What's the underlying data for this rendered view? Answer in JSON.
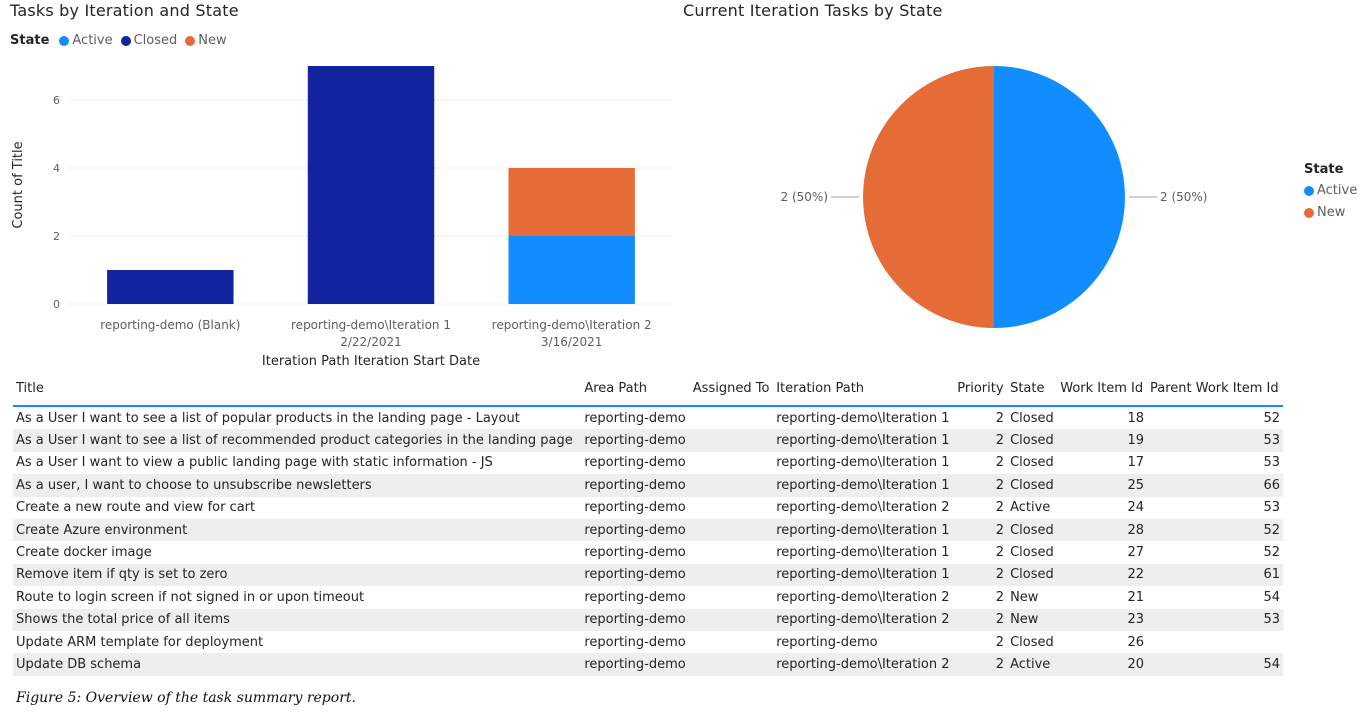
{
  "charts": {
    "bar_title": "Tasks by Iteration and State",
    "pie_title": "Current Iteration Tasks by State",
    "legend_label": "State"
  },
  "chart_data": [
    {
      "type": "bar",
      "stacked": true,
      "title": "Tasks by Iteration and State",
      "xlabel": "Iteration Path Iteration Start Date",
      "ylabel": "Count of Title",
      "ylim": [
        0,
        7
      ],
      "yticks": [
        0,
        2,
        4,
        6
      ],
      "categories": [
        [
          "reporting-demo (Blank)"
        ],
        [
          "reporting-demo\\Iteration 1",
          "2/22/2021"
        ],
        [
          "reporting-demo\\Iteration 2",
          "3/16/2021"
        ]
      ],
      "series": [
        {
          "name": "Active",
          "color": "#118dff",
          "values": [
            0,
            0,
            2
          ]
        },
        {
          "name": "Closed",
          "color": "#12239e",
          "values": [
            1,
            7,
            0
          ]
        },
        {
          "name": "New",
          "color": "#e66c37",
          "values": [
            0,
            0,
            2
          ]
        }
      ],
      "legend_position": "top-left",
      "grid": true
    },
    {
      "type": "pie",
      "title": "Current Iteration Tasks by State",
      "slices": [
        {
          "name": "Active",
          "value": 2,
          "label": "2 (50%)",
          "color": "#118dff"
        },
        {
          "name": "New",
          "value": 2,
          "label": "2 (50%)",
          "color": "#e66c37"
        }
      ],
      "legend_position": "right"
    }
  ],
  "table": {
    "columns": [
      "Title",
      "Area Path",
      "Assigned To",
      "Iteration Path",
      "Priority",
      "State",
      "Work Item Id",
      "Parent Work Item Id"
    ],
    "rows": [
      [
        "As a User I want to see a list of popular products in the landing page - Layout",
        "reporting-demo",
        "",
        "reporting-demo\\Iteration 1",
        "2",
        "Closed",
        "18",
        "52"
      ],
      [
        "As a User I want to see a list of recommended product categories in the landing page",
        "reporting-demo",
        "",
        "reporting-demo\\Iteration 1",
        "2",
        "Closed",
        "19",
        "53"
      ],
      [
        "As a User I want to view a public landing page with static information - JS",
        "reporting-demo",
        "",
        "reporting-demo\\Iteration 1",
        "2",
        "Closed",
        "17",
        "53"
      ],
      [
        "As a user, I want to choose to unsubscribe newsletters",
        "reporting-demo",
        "",
        "reporting-demo\\Iteration 1",
        "2",
        "Closed",
        "25",
        "66"
      ],
      [
        "Create a new route and view for cart",
        "reporting-demo",
        "",
        "reporting-demo\\Iteration 2",
        "2",
        "Active",
        "24",
        "53"
      ],
      [
        "Create Azure environment",
        "reporting-demo",
        "",
        "reporting-demo\\Iteration 1",
        "2",
        "Closed",
        "28",
        "52"
      ],
      [
        "Create docker image",
        "reporting-demo",
        "",
        "reporting-demo\\Iteration 1",
        "2",
        "Closed",
        "27",
        "52"
      ],
      [
        "Remove item if qty is set to zero",
        "reporting-demo",
        "",
        "reporting-demo\\Iteration 1",
        "2",
        "Closed",
        "22",
        "61"
      ],
      [
        "Route to login screen if not signed in or upon timeout",
        "reporting-demo",
        "",
        "reporting-demo\\Iteration 2",
        "2",
        "New",
        "21",
        "54"
      ],
      [
        "Shows the total price of all items",
        "reporting-demo",
        "",
        "reporting-demo\\Iteration 2",
        "2",
        "New",
        "23",
        "53"
      ],
      [
        "Update ARM template for deployment",
        "reporting-demo",
        "",
        "reporting-demo",
        "2",
        "Closed",
        "26",
        ""
      ],
      [
        "Update DB schema",
        "reporting-demo",
        "",
        "reporting-demo\\Iteration 2",
        "2",
        "Active",
        "20",
        "54"
      ]
    ]
  },
  "caption": "Figure 5: Overview of the task summary report."
}
